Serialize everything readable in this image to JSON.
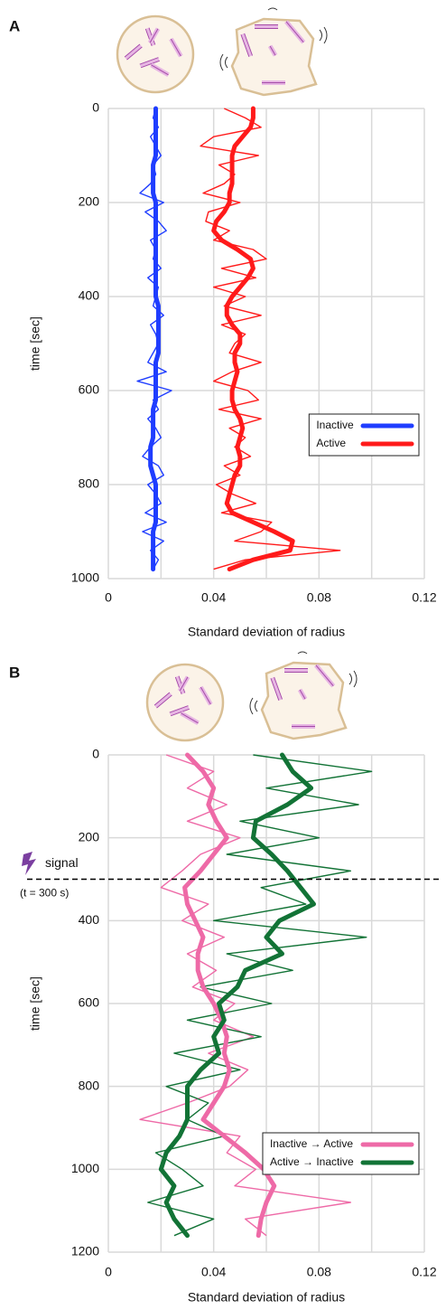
{
  "chart_data": [
    {
      "type": "line",
      "panel_label": "A",
      "xlabel": "Standard deviation of radius",
      "ylabel": "time [sec]",
      "xlim": [
        0,
        0.12
      ],
      "xticks": [
        0,
        0.04,
        0.08,
        0.12
      ],
      "xminor": [
        0.02,
        0.06,
        0.1
      ],
      "ylim": [
        0,
        1000
      ],
      "yticks": [
        0,
        200,
        400,
        600,
        800,
        1000
      ],
      "y_inverted": true,
      "grid": true,
      "legend_loc": "center right",
      "y": [
        0,
        20,
        40,
        60,
        80,
        100,
        120,
        140,
        160,
        180,
        200,
        220,
        240,
        260,
        280,
        300,
        320,
        340,
        360,
        380,
        400,
        420,
        440,
        460,
        480,
        500,
        520,
        540,
        560,
        580,
        600,
        620,
        640,
        660,
        680,
        700,
        720,
        740,
        760,
        780,
        800,
        820,
        840,
        860,
        880,
        900,
        920,
        940,
        960,
        980
      ],
      "series": [
        {
          "name": "Inactive",
          "color": "#1f3dff",
          "values": [
            0.018,
            0.018,
            0.018,
            0.018,
            0.018,
            0.018,
            0.017,
            0.017,
            0.017,
            0.017,
            0.018,
            0.018,
            0.018,
            0.018,
            0.018,
            0.018,
            0.018,
            0.018,
            0.018,
            0.018,
            0.018,
            0.019,
            0.019,
            0.019,
            0.019,
            0.019,
            0.019,
            0.018,
            0.018,
            0.018,
            0.018,
            0.018,
            0.017,
            0.017,
            0.017,
            0.017,
            0.016,
            0.016,
            0.016,
            0.017,
            0.018,
            0.018,
            0.018,
            0.018,
            0.018,
            0.017,
            0.017,
            0.017,
            0.017,
            0.017
          ],
          "raw_values": [
            0.018,
            0.017,
            0.019,
            0.016,
            0.018,
            0.02,
            0.017,
            0.018,
            0.016,
            0.012,
            0.021,
            0.014,
            0.019,
            0.022,
            0.016,
            0.018,
            0.017,
            0.02,
            0.015,
            0.019,
            0.018,
            0.017,
            0.021,
            0.016,
            0.018,
            0.019,
            0.017,
            0.015,
            0.022,
            0.011,
            0.024,
            0.017,
            0.019,
            0.015,
            0.018,
            0.02,
            0.016,
            0.013,
            0.019,
            0.021,
            0.015,
            0.018,
            0.02,
            0.014,
            0.022,
            0.013,
            0.021,
            0.016,
            0.019,
            0.017
          ]
        },
        {
          "name": "Active",
          "color": "#ff1a1a",
          "values": [
            0.055,
            0.055,
            0.054,
            0.051,
            0.048,
            0.047,
            0.047,
            0.047,
            0.047,
            0.046,
            0.046,
            0.044,
            0.041,
            0.04,
            0.043,
            0.049,
            0.054,
            0.055,
            0.053,
            0.05,
            0.047,
            0.045,
            0.045,
            0.047,
            0.05,
            0.05,
            0.048,
            0.048,
            0.049,
            0.048,
            0.047,
            0.047,
            0.048,
            0.05,
            0.051,
            0.05,
            0.049,
            0.05,
            0.05,
            0.048,
            0.047,
            0.046,
            0.045,
            0.047,
            0.055,
            0.063,
            0.07,
            0.069,
            0.055,
            0.046
          ],
          "raw_values": [
            0.044,
            0.052,
            0.058,
            0.04,
            0.035,
            0.057,
            0.042,
            0.048,
            0.044,
            0.036,
            0.05,
            0.038,
            0.037,
            0.046,
            0.04,
            0.055,
            0.06,
            0.043,
            0.056,
            0.04,
            0.052,
            0.044,
            0.058,
            0.043,
            0.052,
            0.048,
            0.046,
            0.058,
            0.047,
            0.04,
            0.053,
            0.057,
            0.042,
            0.058,
            0.046,
            0.052,
            0.048,
            0.054,
            0.044,
            0.05,
            0.041,
            0.047,
            0.056,
            0.043,
            0.062,
            0.058,
            0.048,
            0.088,
            0.052,
            0.04
          ]
        }
      ]
    },
    {
      "type": "line",
      "panel_label": "B",
      "xlabel": "Standard deviation of radius",
      "ylabel": "time [sec]",
      "xlim": [
        0,
        0.12
      ],
      "xticks": [
        0,
        0.04,
        0.08,
        0.12
      ],
      "xminor": [
        0.02,
        0.06,
        0.1
      ],
      "ylim": [
        0,
        1200
      ],
      "yticks": [
        0,
        200,
        400,
        600,
        800,
        1000,
        1200
      ],
      "y_inverted": true,
      "grid": true,
      "legend_loc": "lower right",
      "signal": {
        "time": 300,
        "label": "signal",
        "note": "(t = 300 s)"
      },
      "y": [
        0,
        40,
        80,
        120,
        160,
        200,
        240,
        280,
        320,
        360,
        400,
        440,
        480,
        520,
        560,
        600,
        640,
        680,
        720,
        760,
        800,
        840,
        880,
        920,
        960,
        1000,
        1040,
        1080,
        1120,
        1160
      ],
      "series": [
        {
          "name": "Inactive → Active",
          "color": "#ee6aa7",
          "values": [
            0.03,
            0.036,
            0.04,
            0.038,
            0.041,
            0.045,
            0.04,
            0.035,
            0.029,
            0.03,
            0.033,
            0.036,
            0.034,
            0.034,
            0.036,
            0.04,
            0.043,
            0.045,
            0.044,
            0.046,
            0.044,
            0.04,
            0.036,
            0.044,
            0.052,
            0.059,
            0.063,
            0.06,
            0.058,
            0.057
          ],
          "raw_values": [
            0.022,
            0.04,
            0.03,
            0.045,
            0.03,
            0.05,
            0.035,
            0.028,
            0.02,
            0.038,
            0.028,
            0.044,
            0.03,
            0.041,
            0.032,
            0.048,
            0.04,
            0.055,
            0.038,
            0.053,
            0.046,
            0.03,
            0.012,
            0.05,
            0.045,
            0.056,
            0.048,
            0.092,
            0.052,
            0.06
          ]
        },
        {
          "name": "Active → Inactive",
          "color": "#127336",
          "values": [
            0.066,
            0.07,
            0.077,
            0.068,
            0.056,
            0.055,
            0.062,
            0.068,
            0.073,
            0.078,
            0.065,
            0.06,
            0.066,
            0.052,
            0.049,
            0.042,
            0.044,
            0.04,
            0.042,
            0.035,
            0.03,
            0.03,
            0.03,
            0.027,
            0.022,
            0.02,
            0.025,
            0.022,
            0.025,
            0.03
          ],
          "raw_values": [
            0.055,
            0.1,
            0.06,
            0.095,
            0.05,
            0.08,
            0.045,
            0.092,
            0.058,
            0.075,
            0.04,
            0.098,
            0.045,
            0.07,
            0.035,
            0.062,
            0.03,
            0.058,
            0.025,
            0.05,
            0.022,
            0.038,
            0.03,
            0.044,
            0.018,
            0.028,
            0.036,
            0.015,
            0.04,
            0.025
          ]
        }
      ]
    }
  ]
}
